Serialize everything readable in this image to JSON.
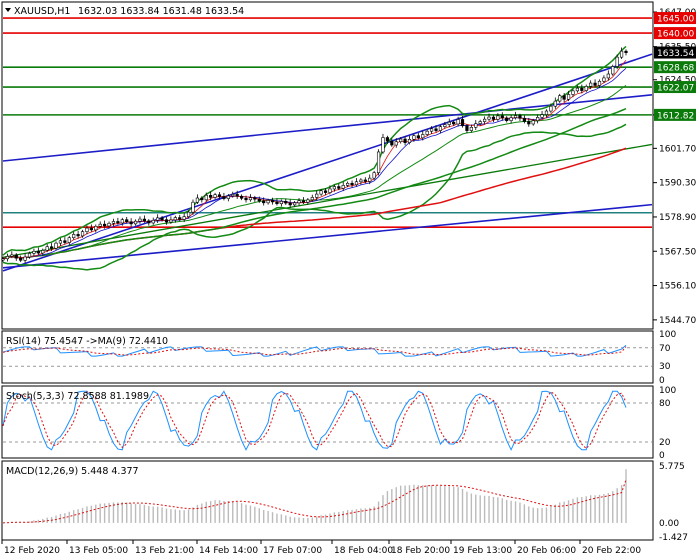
{
  "window": {
    "title": "XAUUSD,H1",
    "ohlc": "1632.03 1633.84 1631.48 1633.54"
  },
  "colors": {
    "blue_channel": "#1d1dc8",
    "green_level": "#0a7a0a",
    "red_level": "#e60000",
    "bollinger": "#138a13",
    "ma_red": "#e01010",
    "ma_blue": "#1010d0",
    "teal_line": "#208080",
    "candles": "#000000"
  },
  "chart_data": [
    {
      "type": "candlestick",
      "panel": "price",
      "symbol": "XAUUSD",
      "timeframe": "H1",
      "y_ticks": [
        "1647.00",
        "1635.50",
        "1624.50",
        "1612.82",
        "1601.70",
        "1590.30",
        "1578.90",
        "1567.50",
        "1556.10",
        "1544.70"
      ],
      "y_values": [
        1647.0,
        1635.5,
        1624.5,
        1612.82,
        1601.7,
        1590.3,
        1578.9,
        1567.5,
        1556.1,
        1544.7
      ],
      "ylim": [
        1542,
        1650
      ],
      "x_ticks": [
        "12 Feb 2020",
        "13 Feb 05:00",
        "13 Feb 21:00",
        "14 Feb 14:00",
        "17 Feb 07:00",
        "18 Feb 04:00",
        "18 Feb 20:00",
        "19 Feb 13:00",
        "20 Feb 06:00",
        "20 Feb 22:00"
      ],
      "price_tags": [
        {
          "label": "1645.00",
          "value": 1645.0,
          "color": "#e60000"
        },
        {
          "label": "1640.00",
          "value": 1640.0,
          "color": "#e60000"
        },
        {
          "label": "1633.54",
          "value": 1633.54,
          "color": "#000000"
        },
        {
          "label": "1628.68",
          "value": 1628.68,
          "color": "#0a7a0a"
        },
        {
          "label": "1622.07",
          "value": 1622.07,
          "color": "#0a7a0a"
        },
        {
          "label": "1612.82",
          "value": 1612.82,
          "color": "#0a7a0a"
        }
      ],
      "horizontal_levels": [
        {
          "value": 1645.0,
          "color": "#e60000"
        },
        {
          "value": 1640.0,
          "color": "#e60000"
        },
        {
          "value": 1628.68,
          "color": "#0a7a0a"
        },
        {
          "value": 1622.07,
          "color": "#0a7a0a"
        },
        {
          "value": 1612.82,
          "color": "#0a7a0a"
        },
        {
          "value": 1575.5,
          "color": "#e60000"
        },
        {
          "value": 1580.3,
          "color": "#208080"
        }
      ],
      "closes": [
        1565.0,
        1565.8,
        1566.3,
        1565.2,
        1564.5,
        1565.6,
        1566.8,
        1567.5,
        1566.9,
        1567.8,
        1569.0,
        1568.5,
        1570.2,
        1571.0,
        1570.4,
        1572.0,
        1573.1,
        1572.6,
        1574.0,
        1575.2,
        1574.6,
        1575.8,
        1576.5,
        1575.9,
        1576.8,
        1577.4,
        1576.9,
        1578.0,
        1577.3,
        1576.6,
        1577.5,
        1578.2,
        1577.6,
        1576.9,
        1577.8,
        1578.6,
        1578.0,
        1577.2,
        1577.9,
        1578.7,
        1578.1,
        1579.0,
        1580.5,
        1583.8,
        1585.2,
        1584.6,
        1586.1,
        1585.4,
        1586.3,
        1585.7,
        1585.0,
        1585.9,
        1586.4,
        1585.8,
        1585.1,
        1584.6,
        1585.3,
        1584.8,
        1584.2,
        1583.6,
        1584.4,
        1583.9,
        1583.3,
        1584.1,
        1583.5,
        1582.9,
        1583.6,
        1584.3,
        1583.8,
        1584.6,
        1585.4,
        1586.5,
        1587.6,
        1587.0,
        1588.2,
        1589.0,
        1588.4,
        1589.4,
        1590.1,
        1589.6,
        1590.6,
        1591.2,
        1590.7,
        1591.8,
        1593.6,
        1600.5,
        1605.3,
        1604.1,
        1602.8,
        1603.9,
        1604.8,
        1603.6,
        1604.7,
        1605.9,
        1605.2,
        1606.3,
        1607.4,
        1608.2,
        1607.6,
        1608.9,
        1609.6,
        1610.4,
        1609.8,
        1611.3,
        1609.2,
        1607.6,
        1608.7,
        1609.9,
        1610.6,
        1611.4,
        1612.1,
        1611.3,
        1612.5,
        1611.8,
        1610.9,
        1611.9,
        1612.6,
        1611.7,
        1610.6,
        1609.8,
        1610.9,
        1612.0,
        1612.9,
        1614.1,
        1615.7,
        1617.4,
        1619.2,
        1618.0,
        1619.6,
        1620.8,
        1621.7,
        1620.9,
        1622.3,
        1623.4,
        1622.6,
        1624.0,
        1625.1,
        1626.4,
        1628.9,
        1632.0,
        1634.0,
        1633.5
      ],
      "rsi_period": 14,
      "rsi_value": 75.4547,
      "rsi_ma_period": 9,
      "rsi_ma_value": 72.441,
      "stoch_params": "5,3,3",
      "stoch_k": 72.8588,
      "stoch_d": 81.1989,
      "macd_params": "12,26,9",
      "macd_main": 5.448,
      "macd_signal": 4.377
    }
  ],
  "rsi_panel": {
    "title": "RSI(14) 75.4547 ->MA(9) 72.4410",
    "ticks": [
      "100",
      "70",
      "30",
      "0"
    ],
    "tick_values": [
      100,
      70,
      30,
      0
    ]
  },
  "stoch_panel": {
    "title": "Stoch(5,3,3) 72.8588 81.1989",
    "ticks": [
      "100",
      "80",
      "20",
      "0"
    ],
    "tick_values": [
      100,
      80,
      20,
      0
    ]
  },
  "macd_panel": {
    "title": "MACD(12,26,9) 5.448 4.377",
    "ticks": [
      "5.775",
      "0.00",
      "-1.427"
    ],
    "tick_values": [
      5.775,
      0.0,
      -1.427
    ]
  }
}
